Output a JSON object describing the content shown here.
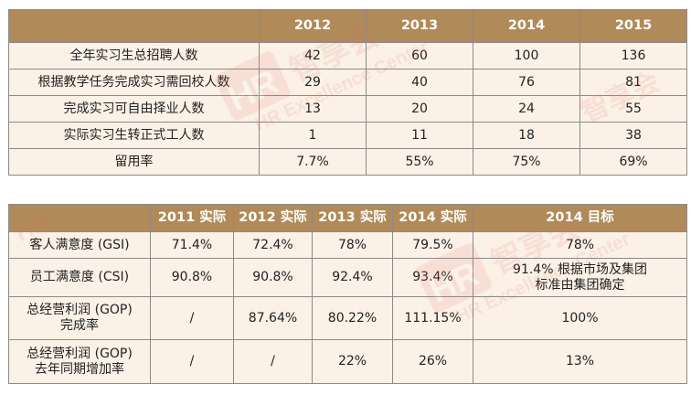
{
  "table1": {
    "headers": [
      "",
      "2012",
      "2013",
      "2014",
      "2015"
    ],
    "rows": [
      {
        "label": "全年实习生总招聘人数",
        "values": [
          "42",
          "60",
          "100",
          "136"
        ]
      },
      {
        "label": "根据教学任务完成实习需回校人数",
        "values": [
          "29",
          "40",
          "76",
          "81"
        ]
      },
      {
        "label": "完成实习可自由择业人数",
        "values": [
          "13",
          "20",
          "24",
          "55"
        ]
      },
      {
        "label": "实际实习生转正式工人数",
        "values": [
          "1",
          "11",
          "18",
          "38"
        ]
      },
      {
        "label": "留用率",
        "values": [
          "7.7%",
          "55%",
          "75%",
          "69%"
        ]
      }
    ]
  },
  "table2": {
    "headers": [
      "",
      "2011 实际",
      "2012 实际",
      "2013 实际",
      "2014 实际",
      "2014 目标"
    ],
    "rows": [
      {
        "label": "客人满意度 (GSI)",
        "values": [
          "71.4%",
          "72.4%",
          "78%",
          "79.5%",
          "78%"
        ]
      },
      {
        "label": "员工满意度 (CSI)",
        "values": [
          "90.8%",
          "90.8%",
          "92.4%",
          "93.4%",
          "91.4% 根据市场及集团标准由集团确定"
        ]
      },
      {
        "label": "总经营利润 (GOP) 完成率",
        "values": [
          "/",
          "87.64%",
          "80.22%",
          "111.15%",
          "100%"
        ]
      },
      {
        "label": "总经营利润 (GOP) 去年同期增加率",
        "values": [
          "/",
          "/",
          "22%",
          "26%",
          "13%"
        ]
      }
    ]
  },
  "watermark": {
    "logo_text": "HR",
    "brand_cn": "智享会",
    "brand_en": "HR Excellence Center",
    "color": "#e07070"
  }
}
